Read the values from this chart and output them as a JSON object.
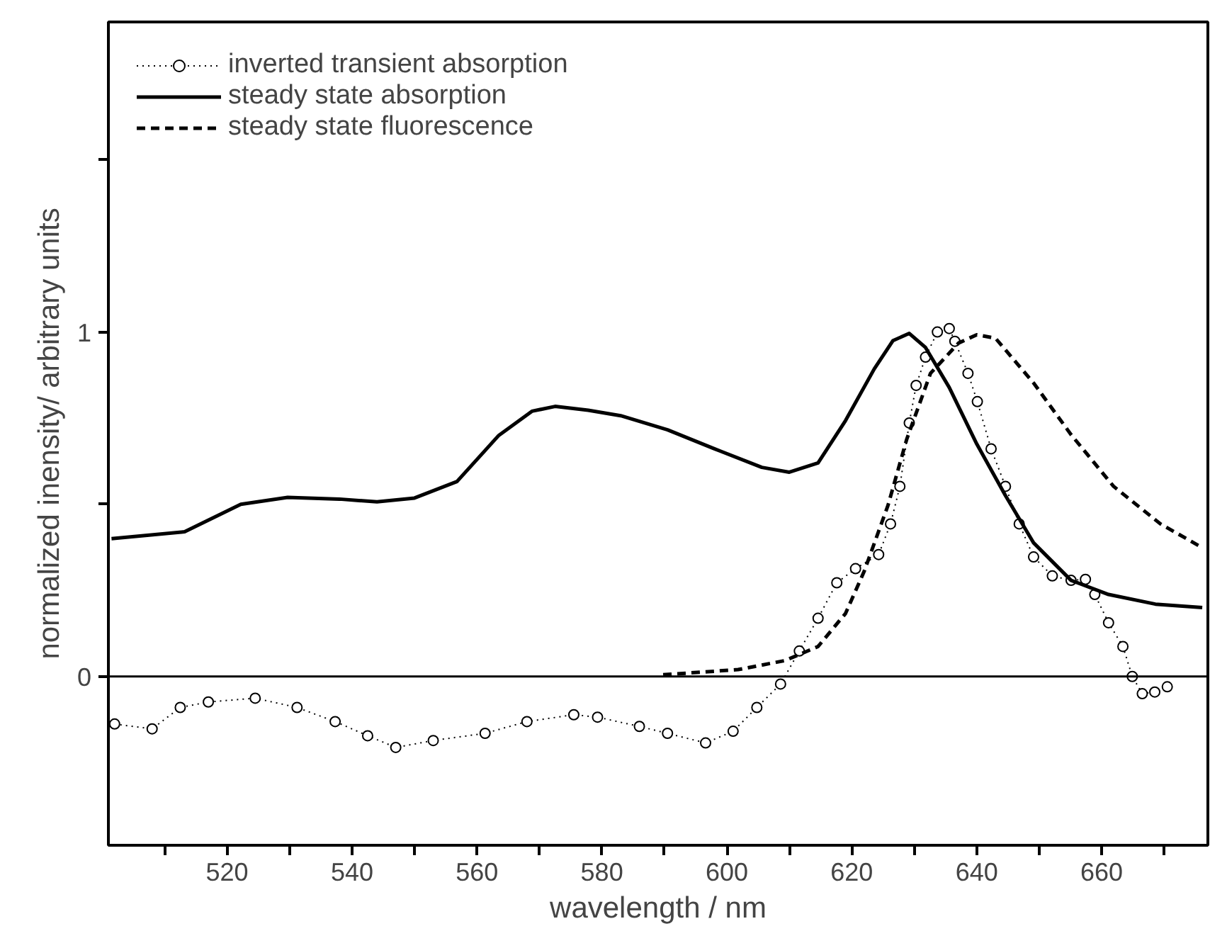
{
  "chart_data": {
    "type": "line",
    "xlabel": "wavelength / nm",
    "ylabel": "normalized inensity/ arbitrary units",
    "xlim": [
      501,
      677
    ],
    "ylim": [
      -0.49,
      1.9
    ],
    "xticks": [
      {
        "value": 510,
        "label": null
      },
      520,
      {
        "value": 530,
        "label": null
      },
      540,
      {
        "value": 550,
        "label": null
      },
      560,
      {
        "value": 570,
        "label": null
      },
      580,
      {
        "value": 590,
        "label": null
      },
      600,
      {
        "value": 610,
        "label": null
      },
      620,
      {
        "value": 630,
        "label": null
      },
      640,
      {
        "value": 650,
        "label": null
      },
      660,
      {
        "value": 670,
        "label": null
      }
    ],
    "yticks": [
      0,
      {
        "value": 0.5,
        "label": null
      },
      1,
      {
        "value": 1.5,
        "label": null
      }
    ],
    "grid": false,
    "legend": "top left",
    "ref_lines": [
      {
        "axis": "y",
        "value": 0,
        "label": null,
        "color": "#000000",
        "line_style": "solid"
      }
    ],
    "series": [
      {
        "name": "inverted transient absorption",
        "color": "#000000",
        "marker": "circle",
        "line_style": "dotted",
        "x": [
          502,
          508,
          512.5,
          517,
          524.5,
          531.2,
          537.3,
          542.5,
          547,
          553,
          561.3,
          568,
          575.5,
          579.3,
          586,
          590.5,
          596.6,
          601,
          604.8,
          608.6,
          611.6,
          614.6,
          617.6,
          620.6,
          624.3,
          626.2,
          627.7,
          629.2,
          630.3,
          631.8,
          633.7,
          635.6,
          636.5,
          638.6,
          640.1,
          642.3,
          644.6,
          646.8,
          649.1,
          652.1,
          655.1,
          657.4,
          658.9,
          661.1,
          663.4,
          664.9,
          666.5,
          668.5,
          670.5
        ],
        "values": [
          -0.138,
          -0.152,
          -0.09,
          -0.074,
          -0.063,
          -0.09,
          -0.131,
          -0.172,
          -0.206,
          -0.186,
          -0.165,
          -0.131,
          -0.111,
          -0.118,
          -0.145,
          -0.165,
          -0.193,
          -0.159,
          -0.09,
          -0.022,
          0.074,
          0.169,
          0.272,
          0.313,
          0.354,
          0.443,
          0.552,
          0.736,
          0.845,
          0.927,
          1.0,
          1.01,
          0.973,
          0.88,
          0.798,
          0.661,
          0.552,
          0.443,
          0.347,
          0.292,
          0.279,
          0.282,
          0.238,
          0.156,
          0.087,
          0.0,
          -0.05,
          -0.045,
          -0.03
        ]
      },
      {
        "name": "steady state absorption",
        "color": "#000000",
        "marker": "none",
        "line_style": "solid",
        "x": [
          501.5,
          513.2,
          522.2,
          529.7,
          538,
          544,
          550,
          556.8,
          563.5,
          568.8,
          572.5,
          577.8,
          583,
          590.5,
          598,
          605.6,
          610,
          614.6,
          619,
          623.6,
          626.6,
          629.2,
          631.8,
          635.6,
          640,
          644.6,
          649.1,
          655.1,
          661.1,
          668.6,
          676.1
        ],
        "values": [
          0.4,
          0.42,
          0.5,
          0.52,
          0.515,
          0.507,
          0.518,
          0.566,
          0.7,
          0.77,
          0.784,
          0.773,
          0.757,
          0.716,
          0.661,
          0.607,
          0.593,
          0.62,
          0.743,
          0.893,
          0.975,
          0.996,
          0.955,
          0.839,
          0.675,
          0.525,
          0.388,
          0.279,
          0.238,
          0.21,
          0.2
        ]
      },
      {
        "name": "steady state fluorescence",
        "color": "#000000",
        "marker": "none",
        "line_style": "dashed",
        "x": [
          589.8,
          601.8,
          609.3,
          614.6,
          619,
          622,
          625.8,
          628.8,
          632.6,
          637.1,
          640,
          643,
          649.1,
          655.1,
          661.9,
          669.4,
          676.1
        ],
        "values": [
          0.005,
          0.02,
          0.046,
          0.087,
          0.183,
          0.306,
          0.497,
          0.689,
          0.88,
          0.968,
          0.992,
          0.982,
          0.852,
          0.702,
          0.552,
          0.443,
          0.374
        ]
      }
    ]
  }
}
